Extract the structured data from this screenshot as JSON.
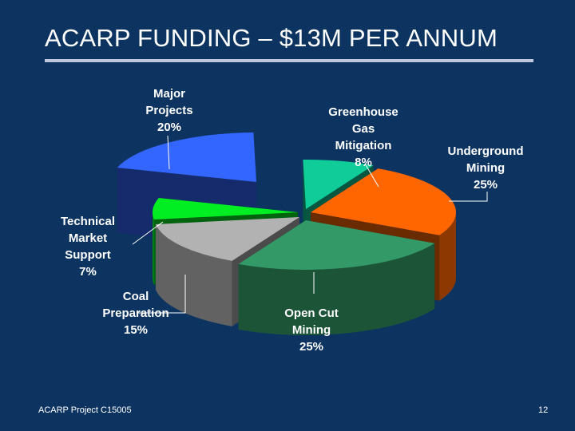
{
  "slide": {
    "title": "ACARP FUNDING – $13M PER ANNUM",
    "footer_left": "ACARP Project C15005",
    "page_number": "12"
  },
  "chart_data": {
    "type": "pie",
    "style": "3d-exploded",
    "title": "ACARP FUNDING – $13M PER ANNUM",
    "slices": [
      {
        "label": [
          "Greenhouse",
          "Gas",
          "Mitigation",
          "8%"
        ],
        "value": 8,
        "color": "#0fcc99"
      },
      {
        "label": [
          "Underground",
          "Mining",
          "25%"
        ],
        "value": 25,
        "color": "#ff6600"
      },
      {
        "label": [
          "Open Cut",
          "Mining",
          "25%"
        ],
        "value": 25,
        "color": "#339966"
      },
      {
        "label": [
          "Coal",
          "Preparation",
          "15%"
        ],
        "value": 15,
        "color": "#b2b2b2"
      },
      {
        "label": [
          "Technical",
          "Market",
          "Support",
          "7%"
        ],
        "value": 7,
        "color": "#00ee22"
      },
      {
        "label": [
          "Major",
          "Projects",
          "20%"
        ],
        "value": 20,
        "color": "#3366ff"
      }
    ]
  }
}
